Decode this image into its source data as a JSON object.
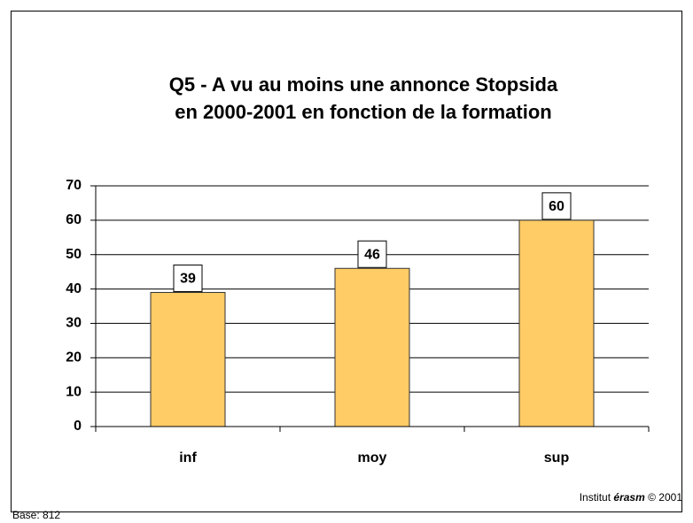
{
  "chart_data": {
    "type": "bar",
    "title": [
      "Q5 - A vu au moins une annonce Stopsida",
      "en 2000-2001 en fonction de la formation"
    ],
    "categories": [
      "inf",
      "moy",
      "sup"
    ],
    "values": [
      39,
      46,
      60
    ],
    "color": "#FFCC66",
    "ylim": [
      0,
      70
    ],
    "yticks": [
      0,
      10,
      20,
      30,
      40,
      50,
      60,
      70
    ],
    "grid": true
  },
  "footer": {
    "base": "Base: 812",
    "prefix": "Institut",
    "brand": "érasm",
    "suffix": "© 2001"
  }
}
